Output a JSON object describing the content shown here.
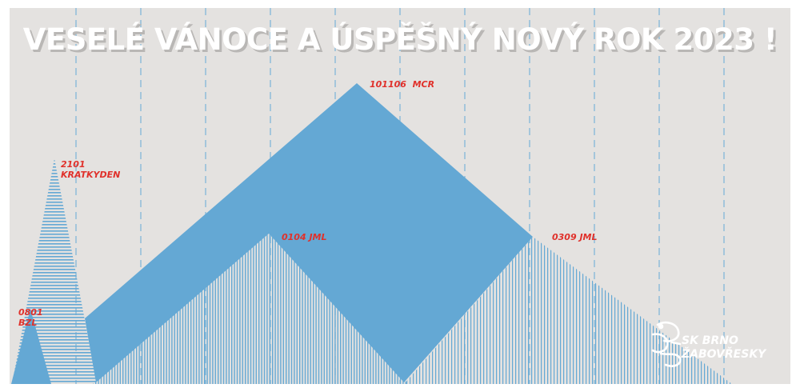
{
  "title": "VESELÉ VÁNOCE A ÚSPĚŠNÝ NOVÝ ROK 2023 !",
  "peaks": [
    {
      "code": "2101",
      "name": "KRATKYDEN"
    },
    {
      "code": "0801",
      "name": "BZL"
    },
    {
      "code": "0104",
      "name": "JML"
    },
    {
      "code": "101106",
      "name": "MCR"
    },
    {
      "code": "0309",
      "name": "JML"
    }
  ],
  "logo": {
    "line1": "SK BRNO",
    "line2": "ŽABOVŘESKY",
    "icon": "frog-icon"
  },
  "colors": {
    "background": "#e4e2e0",
    "blue": "#64a8d4",
    "red": "#e0312b",
    "white": "#ffffff",
    "dashed": "#7ab4d8"
  }
}
